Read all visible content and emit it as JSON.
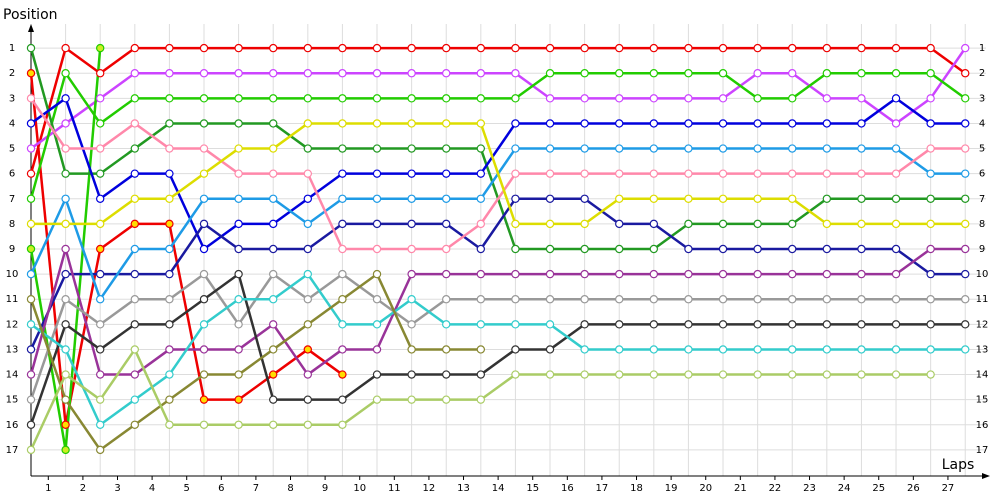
{
  "chart_data": {
    "type": "line",
    "y_label": "Position",
    "x_label": "Laps",
    "x": [
      0,
      1,
      2,
      3,
      4,
      5,
      6,
      7,
      8,
      9,
      10,
      11,
      12,
      13,
      14,
      15,
      16,
      17,
      18,
      19,
      20,
      21,
      22,
      23,
      24,
      25,
      26,
      27
    ],
    "xlim": [
      0,
      27.6
    ],
    "xticks": [
      {
        "value": 0.5,
        "label": "1"
      },
      {
        "value": 1.5,
        "label": "2"
      },
      {
        "value": 2.5,
        "label": "3"
      },
      {
        "value": 3.5,
        "label": "4"
      },
      {
        "value": 4.5,
        "label": "5"
      },
      {
        "value": 5.5,
        "label": "6"
      },
      {
        "value": 6.5,
        "label": "7"
      },
      {
        "value": 7.5,
        "label": "8"
      },
      {
        "value": 8.5,
        "label": "9"
      },
      {
        "value": 9.5,
        "label": "10"
      },
      {
        "value": 10.5,
        "label": "11"
      },
      {
        "value": 11.5,
        "label": "12"
      },
      {
        "value": 12.5,
        "label": "13"
      },
      {
        "value": 13.5,
        "label": "14"
      },
      {
        "value": 14.5,
        "label": "15"
      },
      {
        "value": 15.5,
        "label": "16"
      },
      {
        "value": 16.5,
        "label": "17"
      },
      {
        "value": 17.5,
        "label": "18"
      },
      {
        "value": 18.5,
        "label": "19"
      },
      {
        "value": 19.5,
        "label": "20"
      },
      {
        "value": 20.5,
        "label": "21"
      },
      {
        "value": 21.5,
        "label": "22"
      },
      {
        "value": 22.5,
        "label": "23"
      },
      {
        "value": 23.5,
        "label": "24"
      },
      {
        "value": 24.5,
        "label": "25"
      },
      {
        "value": 25.5,
        "label": "26"
      },
      {
        "value": 26.5,
        "label": "27"
      }
    ],
    "ylim": [
      18.04,
      0.04
    ],
    "yticks": [
      1,
      2,
      3,
      4,
      5,
      6,
      7,
      8,
      9,
      10,
      11,
      12,
      13,
      14,
      15,
      16,
      17
    ],
    "grid": true,
    "series": [
      {
        "color": "#ee0000",
        "marker_fill": "#ffffff",
        "values": [
          6,
          1,
          2,
          1,
          1,
          1,
          1,
          1,
          1,
          1,
          1,
          1,
          1,
          1,
          1,
          1,
          1,
          1,
          1,
          1,
          1,
          1,
          1,
          1,
          1,
          1,
          1,
          2
        ]
      },
      {
        "color": "#ee0000",
        "marker_fill": "#ffdd00",
        "values": [
          2,
          16,
          9,
          8,
          8,
          15,
          15,
          14,
          13,
          14,
          null,
          null,
          null,
          null,
          null,
          null,
          null,
          null,
          null,
          null,
          null,
          null,
          null,
          null,
          null,
          null,
          null,
          null
        ]
      },
      {
        "color": "#cc44ff",
        "marker_fill": "#ffffff",
        "values": [
          5,
          4,
          3,
          2,
          2,
          2,
          2,
          2,
          2,
          2,
          2,
          2,
          2,
          2,
          2,
          3,
          3,
          3,
          3,
          3,
          3,
          2,
          2,
          3,
          3,
          4,
          3,
          1
        ]
      },
      {
        "color": "#22cc00",
        "marker_fill": "#ffffff",
        "values": [
          7,
          2,
          4,
          3,
          3,
          3,
          3,
          3,
          3,
          3,
          3,
          3,
          3,
          3,
          3,
          2,
          2,
          2,
          2,
          2,
          2,
          3,
          3,
          2,
          2,
          2,
          2,
          3
        ]
      },
      {
        "color": "#22cc00",
        "marker_fill": "#ccee22",
        "values": [
          9,
          17,
          1,
          null,
          null,
          null,
          null,
          null,
          null,
          null,
          null,
          null,
          null,
          null,
          null,
          null,
          null,
          null,
          null,
          null,
          null,
          null,
          null,
          null,
          null,
          null,
          null,
          null
        ]
      },
      {
        "color": "#229922",
        "marker_fill": "#ffffff",
        "values": [
          1,
          6,
          6,
          5,
          4,
          4,
          4,
          4,
          5,
          5,
          5,
          5,
          5,
          5,
          9,
          9,
          9,
          9,
          9,
          8,
          8,
          8,
          8,
          7,
          7,
          7,
          7,
          7
        ]
      },
      {
        "color": "#0000dd",
        "marker_fill": "#ffffff",
        "values": [
          4,
          3,
          7,
          6,
          6,
          9,
          8,
          8,
          7,
          6,
          6,
          6,
          6,
          6,
          4,
          4,
          4,
          4,
          4,
          4,
          4,
          4,
          4,
          4,
          4,
          3,
          4,
          4
        ]
      },
      {
        "color": "#1a1aa0",
        "marker_fill": "#ffffff",
        "values": [
          13,
          10,
          10,
          10,
          10,
          8,
          9,
          9,
          9,
          8,
          8,
          8,
          8,
          9,
          7,
          7,
          7,
          8,
          8,
          9,
          9,
          9,
          9,
          9,
          9,
          9,
          10,
          10
        ]
      },
      {
        "color": "#1e9be6",
        "marker_fill": "#ffffff",
        "values": [
          10,
          7,
          11,
          9,
          9,
          7,
          7,
          7,
          8,
          7,
          7,
          7,
          7,
          7,
          5,
          5,
          5,
          5,
          5,
          5,
          5,
          5,
          5,
          5,
          5,
          5,
          6,
          6
        ]
      },
      {
        "color": "#ff88aa",
        "marker_fill": "#ffffff",
        "values": [
          3,
          5,
          5,
          4,
          5,
          5,
          6,
          6,
          6,
          9,
          9,
          9,
          9,
          8,
          6,
          6,
          6,
          6,
          6,
          6,
          6,
          6,
          6,
          6,
          6,
          6,
          5,
          5
        ]
      },
      {
        "color": "#dddd00",
        "marker_fill": "#ffffff",
        "values": [
          8,
          8,
          8,
          7,
          7,
          6,
          5,
          5,
          4,
          4,
          4,
          4,
          4,
          4,
          8,
          8,
          8,
          7,
          7,
          7,
          7,
          7,
          7,
          8,
          8,
          8,
          8,
          8
        ]
      },
      {
        "color": "#993399",
        "marker_fill": "#ffffff",
        "values": [
          14,
          9,
          14,
          14,
          13,
          13,
          13,
          12,
          14,
          13,
          13,
          10,
          10,
          10,
          10,
          10,
          10,
          10,
          10,
          10,
          10,
          10,
          10,
          10,
          10,
          10,
          9,
          9
        ]
      },
      {
        "color": "#999999",
        "marker_fill": "#ffffff",
        "values": [
          15,
          11,
          12,
          11,
          11,
          10,
          12,
          10,
          11,
          10,
          11,
          12,
          11,
          11,
          11,
          11,
          11,
          11,
          11,
          11,
          11,
          11,
          11,
          11,
          11,
          11,
          11,
          11
        ]
      },
      {
        "color": "#333333",
        "marker_fill": "#ffffff",
        "values": [
          16,
          12,
          13,
          12,
          12,
          11,
          10,
          15,
          15,
          15,
          14,
          14,
          14,
          14,
          13,
          13,
          12,
          12,
          12,
          12,
          12,
          12,
          12,
          12,
          12,
          12,
          12,
          12
        ]
      },
      {
        "color": "#33cccc",
        "marker_fill": "#ffffff",
        "values": [
          12,
          13,
          16,
          15,
          14,
          12,
          11,
          11,
          10,
          12,
          12,
          11,
          12,
          12,
          12,
          12,
          13,
          13,
          13,
          13,
          13,
          13,
          13,
          13,
          13,
          13,
          13,
          13
        ]
      },
      {
        "color": "#888833",
        "marker_fill": "#ffffff",
        "values": [
          11,
          15,
          17,
          16,
          15,
          14,
          14,
          13,
          12,
          11,
          10,
          13,
          13,
          13,
          null,
          null,
          null,
          null,
          null,
          null,
          null,
          null,
          null,
          null,
          null,
          null,
          null,
          null
        ]
      },
      {
        "color": "#aacc66",
        "marker_fill": "#ffffff",
        "values": [
          17,
          14,
          15,
          13,
          16,
          16,
          16,
          16,
          16,
          16,
          15,
          15,
          15,
          15,
          14,
          14,
          14,
          14,
          14,
          14,
          14,
          14,
          14,
          14,
          14,
          14,
          14,
          null
        ]
      }
    ]
  }
}
